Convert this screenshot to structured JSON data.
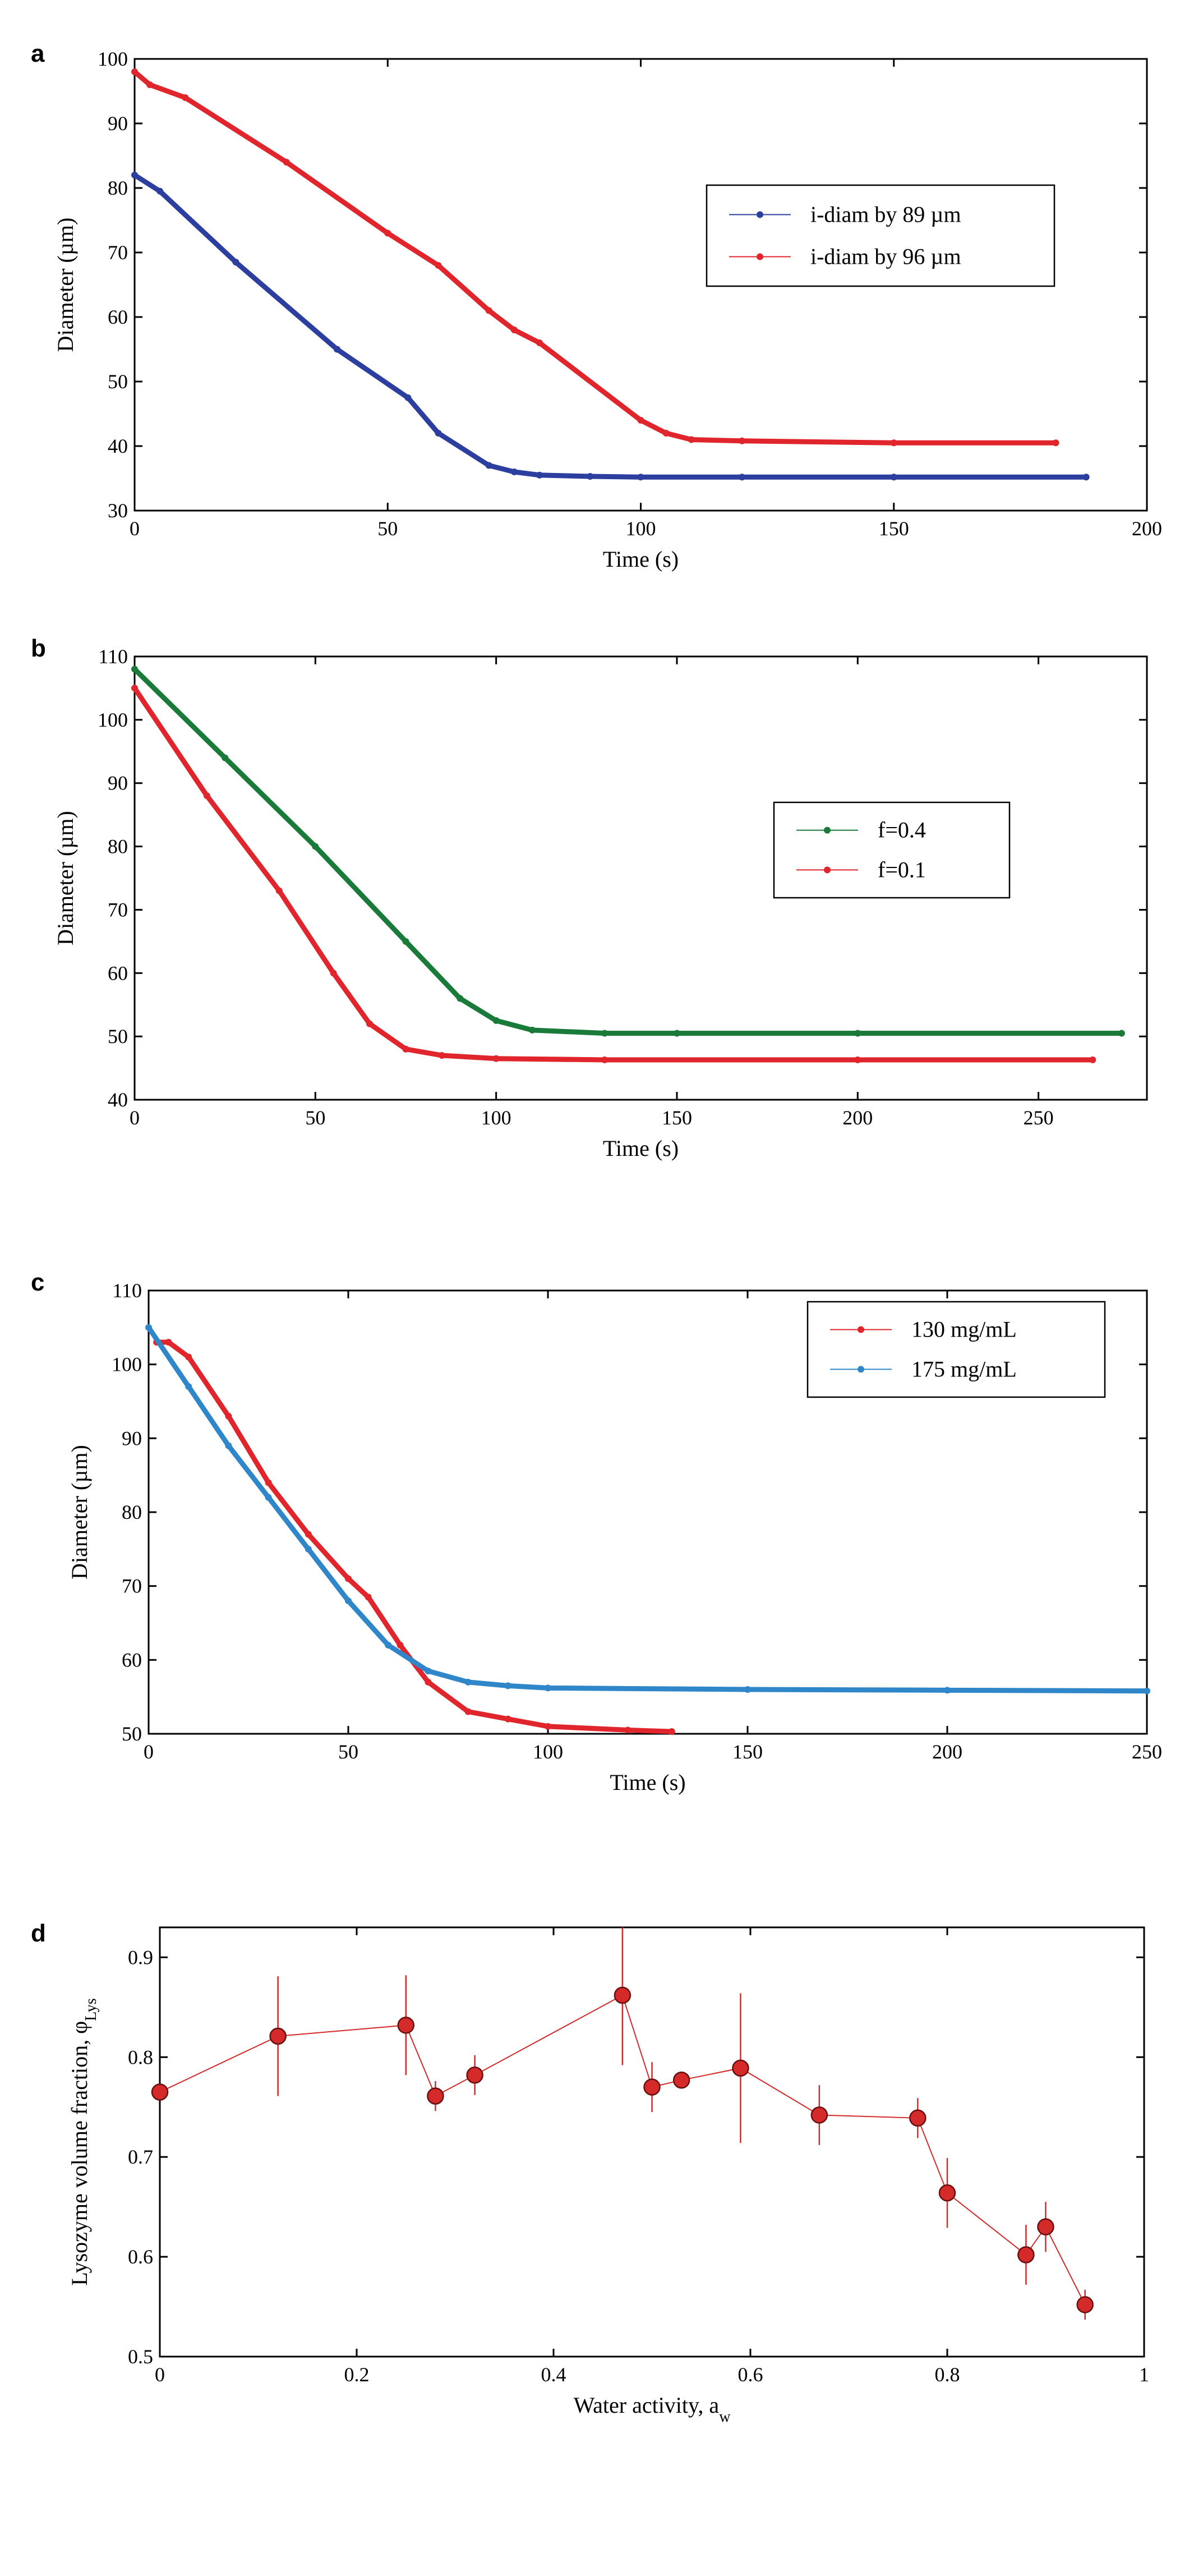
{
  "chart_data": [
    {
      "panel": "a",
      "type": "scatter",
      "xlabel": "Time (s)",
      "ylabel": "Diameter (µm)",
      "xlim": [
        0,
        200
      ],
      "ylim": [
        30,
        100
      ],
      "xticks": [
        0,
        50,
        100,
        150,
        200
      ],
      "yticks": [
        30,
        40,
        50,
        60,
        70,
        80,
        90,
        100
      ],
      "legend_position": "right",
      "series": [
        {
          "name": "i-diam by 89 µm",
          "color": "#2c3e9e",
          "x": [
            0,
            5,
            20,
            40,
            54,
            60,
            70,
            75,
            80,
            90,
            100,
            120,
            150,
            188
          ],
          "y": [
            82,
            79.5,
            68.5,
            55,
            47.5,
            42,
            37,
            36,
            35.5,
            35.3,
            35.2,
            35.2,
            35.2,
            35.2
          ]
        },
        {
          "name": "i-diam by 96 µm",
          "color": "#e0262c",
          "x": [
            0,
            3,
            10,
            30,
            50,
            60,
            70,
            75,
            80,
            100,
            105,
            110,
            120,
            150,
            182
          ],
          "y": [
            98,
            96,
            94,
            84,
            73,
            68,
            61,
            58,
            56,
            44,
            42,
            41,
            40.8,
            40.5,
            40.5
          ]
        }
      ]
    },
    {
      "panel": "b",
      "type": "scatter",
      "xlabel": "Time (s)",
      "ylabel": "Diameter (µm)",
      "xlim": [
        0,
        280
      ],
      "ylim": [
        40,
        110
      ],
      "xticks": [
        0,
        50,
        100,
        150,
        200,
        250
      ],
      "yticks": [
        40,
        50,
        60,
        70,
        80,
        90,
        100,
        110
      ],
      "legend_position": "right",
      "series": [
        {
          "name": "f=0.4",
          "color": "#1a7a3a",
          "x": [
            0,
            25,
            50,
            75,
            90,
            100,
            110,
            130,
            150,
            200,
            273
          ],
          "y": [
            108,
            94,
            80,
            65,
            56,
            52.5,
            51,
            50.5,
            50.5,
            50.5,
            50.5
          ]
        },
        {
          "name": "f=0.1",
          "color": "#e0262c",
          "x": [
            0,
            20,
            40,
            55,
            65,
            75,
            85,
            100,
            130,
            200,
            265
          ],
          "y": [
            105,
            88,
            73,
            60,
            52,
            48,
            47,
            46.5,
            46.3,
            46.3,
            46.3
          ]
        }
      ]
    },
    {
      "panel": "c",
      "type": "scatter",
      "xlabel": "Time (s)",
      "ylabel": "Diameter (µm)",
      "xlim": [
        0,
        250
      ],
      "ylim": [
        50,
        110
      ],
      "xticks": [
        0,
        50,
        100,
        150,
        200,
        250
      ],
      "yticks": [
        50,
        60,
        70,
        80,
        90,
        100,
        110
      ],
      "legend_position": "top-right",
      "series": [
        {
          "name": "130 mg/mL",
          "color": "#e0262c",
          "x": [
            2,
            5,
            10,
            20,
            30,
            40,
            50,
            55,
            63,
            70,
            80,
            90,
            100,
            120,
            131
          ],
          "y": [
            103,
            103,
            101,
            93,
            84,
            77,
            71,
            68.5,
            62,
            57,
            53,
            52,
            51,
            50.5,
            50.3
          ]
        },
        {
          "name": "175 mg/mL",
          "color": "#2f86c8",
          "x": [
            0,
            10,
            20,
            30,
            40,
            50,
            60,
            70,
            80,
            90,
            100,
            150,
            200,
            250
          ],
          "y": [
            105,
            97,
            89,
            82,
            75,
            68,
            62,
            58.5,
            57,
            56.5,
            56.2,
            56,
            55.9,
            55.8
          ]
        }
      ]
    },
    {
      "panel": "d",
      "type": "scatter",
      "xlabel": "Water activity, a",
      "xlabel_sub": "w",
      "ylabel": "Lysozyme volume fraction, φ",
      "ylabel_sub": "Lys",
      "xlim": [
        0,
        1
      ],
      "ylim": [
        0.5,
        0.93
      ],
      "xticks": [
        0,
        0.2,
        0.4,
        0.6,
        0.8,
        1
      ],
      "xtick_labels": [
        "0",
        "0.2",
        "0.4",
        "0.6",
        "0.8",
        "1"
      ],
      "yticks": [
        0.5,
        0.6,
        0.7,
        0.8,
        0.9
      ],
      "ytick_labels": [
        "0.5",
        "0.6",
        "0.7",
        "0.8",
        "0.9"
      ],
      "series": [
        {
          "name": "",
          "color": "#d42a2a",
          "x": [
            0,
            0.12,
            0.25,
            0.28,
            0.32,
            0.47,
            0.5,
            0.53,
            0.59,
            0.67,
            0.77,
            0.8,
            0.88,
            0.9,
            0.94
          ],
          "y": [
            0.765,
            0.821,
            0.832,
            0.761,
            0.782,
            0.862,
            0.77,
            0.777,
            0.789,
            0.742,
            0.739,
            0.664,
            0.602,
            0.63,
            0.552
          ],
          "err": [
            0.005,
            0.06,
            0.05,
            0.015,
            0.02,
            0.07,
            0.025,
            0.005,
            0.075,
            0.03,
            0.02,
            0.035,
            0.03,
            0.025,
            0.015
          ]
        }
      ]
    }
  ]
}
